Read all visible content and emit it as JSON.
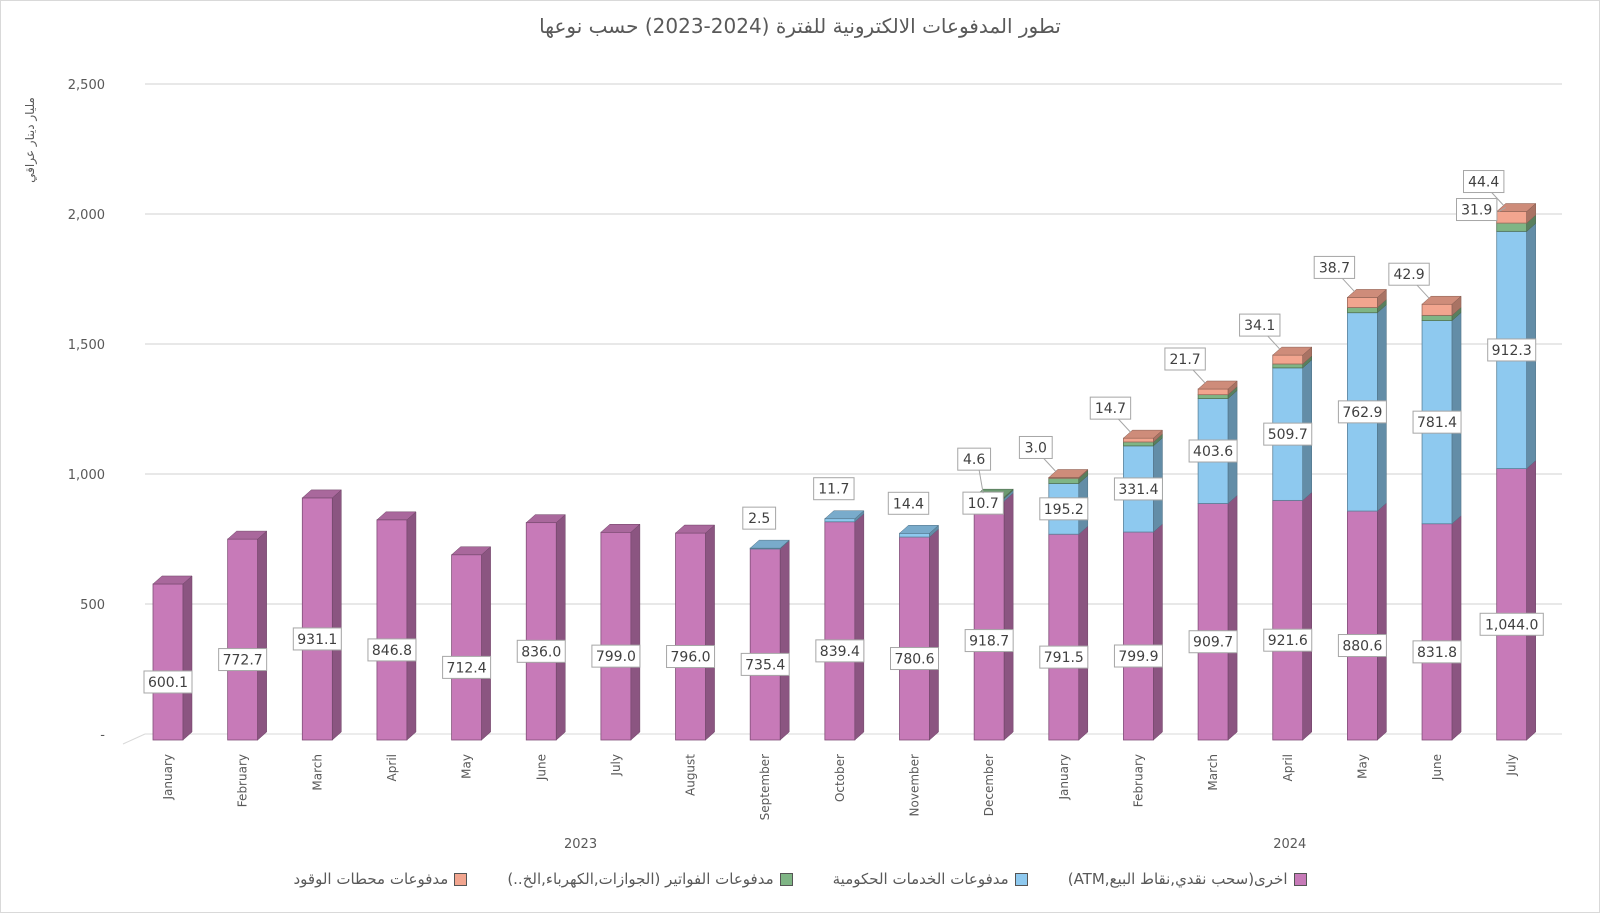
{
  "title": "تطور المدفوعات الالكترونية للفترة (2024-2023) حسب نوعها",
  "ylabel": "مليار دينار عراقي",
  "chart_data": {
    "type": "bar",
    "stacked": true,
    "title": "تطور المدفوعات الالكترونية للفترة (2024-2023) حسب نوعها",
    "ylabel": "مليار دينار عراقي",
    "ylim": [
      0,
      2500
    ],
    "yticks": [
      0,
      500,
      1000,
      1500,
      2000,
      2500
    ],
    "ytick_labels": [
      "-",
      "500",
      "1,000",
      "1,500",
      "2,000",
      "2,500"
    ],
    "grid": true,
    "legend_position": "bottom",
    "categories": [
      "January",
      "February",
      "March",
      "April",
      "May",
      "June",
      "July",
      "August",
      "September",
      "October",
      "November",
      "December",
      "January",
      "February",
      "March",
      "April",
      "May",
      "June",
      "July"
    ],
    "year_groups": [
      {
        "label": "2023",
        "start": 0,
        "end": 11
      },
      {
        "label": "2024",
        "start": 12,
        "end": 18
      }
    ],
    "series": [
      {
        "name": "اخرى(سحب نقدي,نقاط البيع,ATM)",
        "color": "#c77ab8",
        "values": [
          600.1,
          772.7,
          931.1,
          846.8,
          712.4,
          836.0,
          799.0,
          796.0,
          735.4,
          839.4,
          780.6,
          918.7,
          791.5,
          799.9,
          909.7,
          921.6,
          880.6,
          831.8,
          1044.0
        ],
        "labels": [
          "600.1",
          "772.7",
          "931.1",
          "846.8",
          "712.4",
          "836.0",
          "799.0",
          "796.0",
          "735.4",
          "839.4",
          "780.6",
          "918.7",
          "791.5",
          "799.9",
          "909.7",
          "921.6",
          "880.6",
          "831.8",
          "1,044.0"
        ]
      },
      {
        "name": "مدفوعات الخدمات الحكومية",
        "color": "#8ec9ef",
        "values": [
          0,
          0,
          0,
          0,
          0,
          0,
          0,
          0,
          2.5,
          11.7,
          14.4,
          10.7,
          195.2,
          331.4,
          403.6,
          509.7,
          762.9,
          781.4,
          912.3
        ],
        "labels": [
          "",
          "",
          "",
          "",
          "",
          "",
          "",
          "",
          "2.5",
          "11.7",
          "14.4",
          "10.7",
          "195.2",
          "331.4",
          "403.6",
          "509.7",
          "762.9",
          "781.4",
          "912.3"
        ]
      },
      {
        "name": "مدفوعات الفواتير (الجوازات,الكهرباء,الخ..)",
        "color": "#7fb585",
        "values": [
          0,
          0,
          0,
          0,
          0,
          0,
          0,
          0,
          0,
          0,
          0,
          4.6,
          20,
          15,
          15,
          15,
          20,
          20,
          31.9
        ],
        "labels": [
          "",
          "",
          "",
          "",
          "",
          "",
          "",
          "",
          "",
          "",
          "",
          "4.6",
          "",
          "",
          "",
          "",
          "",
          "",
          "31.9"
        ]
      },
      {
        "name": "مدفوعات محطات الوقود",
        "color": "#f2a58f",
        "values": [
          0,
          0,
          0,
          0,
          0,
          0,
          0,
          0,
          0,
          0,
          0,
          0,
          3.0,
          14.7,
          21.7,
          34.1,
          38.7,
          42.9,
          44.4
        ],
        "labels": [
          "",
          "",
          "",
          "",
          "",
          "",
          "",
          "",
          "",
          "",
          "",
          "",
          "3.0",
          "14.7",
          "21.7",
          "34.1",
          "38.7",
          "42.9",
          "44.4"
        ]
      }
    ]
  }
}
